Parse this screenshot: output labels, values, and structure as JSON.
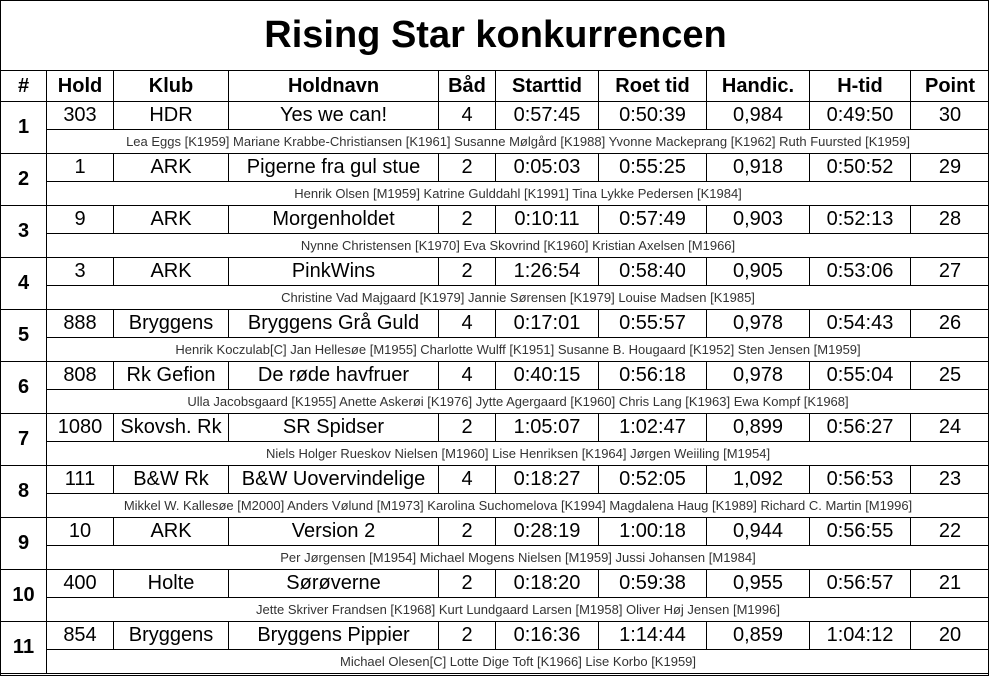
{
  "title": "Rising Star konkurrencen",
  "headers": [
    "#",
    "Hold",
    "Klub",
    "Holdnavn",
    "Båd",
    "Starttid",
    "Roet tid",
    "Handic.",
    "H-tid",
    "Point"
  ],
  "rows": [
    {
      "cells": [
        "1",
        "303",
        "HDR",
        "Yes we can!",
        "4",
        "0:57:45",
        "0:50:39",
        "0,984",
        "0:49:50",
        "30"
      ],
      "crew": "Lea Eggs [K1959] Mariane Krabbe-Christiansen [K1961] Susanne Mølgård [K1988] Yvonne Mackeprang [K1962] Ruth Fuursted [K1959]"
    },
    {
      "cells": [
        "2",
        "1",
        "ARK",
        "Pigerne fra gul stue",
        "2",
        "0:05:03",
        "0:55:25",
        "0,918",
        "0:50:52",
        "29"
      ],
      "crew": "Henrik Olsen [M1959] Katrine Gulddahl [K1991] Tina Lykke Pedersen [K1984]"
    },
    {
      "cells": [
        "3",
        "9",
        "ARK",
        "Morgenholdet",
        "2",
        "0:10:11",
        "0:57:49",
        "0,903",
        "0:52:13",
        "28"
      ],
      "crew": "Nynne Christensen [K1970] Eva Skovrind [K1960] Kristian Axelsen [M1966]"
    },
    {
      "cells": [
        "4",
        "3",
        "ARK",
        "PinkWins",
        "2",
        "1:26:54",
        "0:58:40",
        "0,905",
        "0:53:06",
        "27"
      ],
      "crew": "Christine Vad Majgaard [K1979] Jannie Sørensen [K1979] Louise Madsen [K1985]"
    },
    {
      "cells": [
        "5",
        "888",
        "Bryggens",
        "Bryggens Grå Guld",
        "4",
        "0:17:01",
        "0:55:57",
        "0,978",
        "0:54:43",
        "26"
      ],
      "crew": "Henrik Koczulab[C] Jan Hellesøe [M1955] Charlotte Wulff [K1951] Susanne B. Hougaard [K1952] Sten Jensen [M1959]"
    },
    {
      "cells": [
        "6",
        "808",
        "Rk Gefion",
        "De røde havfruer",
        "4",
        "0:40:15",
        "0:56:18",
        "0,978",
        "0:55:04",
        "25"
      ],
      "crew": "Ulla Jacobsgaard [K1955] Anette Askerøi [K1976] Jytte Agergaard [K1960] Chris Lang [K1963] Ewa Kompf [K1968]"
    },
    {
      "cells": [
        "7",
        "1080",
        "Skovsh. Rk",
        "SR Spidser",
        "2",
        "1:05:07",
        "1:02:47",
        "0,899",
        "0:56:27",
        "24"
      ],
      "crew": "Niels Holger Rueskov Nielsen [M1960] Lise Henriksen [K1964] Jørgen Weiiling [M1954]"
    },
    {
      "cells": [
        "8",
        "111",
        "B&W Rk",
        "B&W Uovervindelige",
        "4",
        "0:18:27",
        "0:52:05",
        "1,092",
        "0:56:53",
        "23"
      ],
      "crew": "Mikkel W. Kallesøe [M2000] Anders Vølund [M1973] Karolina Suchomelova [K1994] Magdalena Haug [K1989] Richard C. Martin [M1996]"
    },
    {
      "cells": [
        "9",
        "10",
        "ARK",
        "Version 2",
        "2",
        "0:28:19",
        "1:00:18",
        "0,944",
        "0:56:55",
        "22"
      ],
      "crew": "Per Jørgensen [M1954] Michael Mogens Nielsen [M1959] Jussi Johansen [M1984]"
    },
    {
      "cells": [
        "10",
        "400",
        "Holte",
        "Sørøverne",
        "2",
        "0:18:20",
        "0:59:38",
        "0,955",
        "0:56:57",
        "21"
      ],
      "crew": "Jette Skriver Frandsen [K1968] Kurt Lundgaard Larsen [M1958] Oliver Høj Jensen [M1996]"
    },
    {
      "cells": [
        "11",
        "854",
        "Bryggens",
        "Bryggens Pippier",
        "2",
        "0:16:36",
        "1:14:44",
        "0,859",
        "1:04:12",
        "20"
      ],
      "crew": "Michael Olesen[C] Lotte Dige Toft [K1966] Lise Korbo [K1959]"
    }
  ]
}
